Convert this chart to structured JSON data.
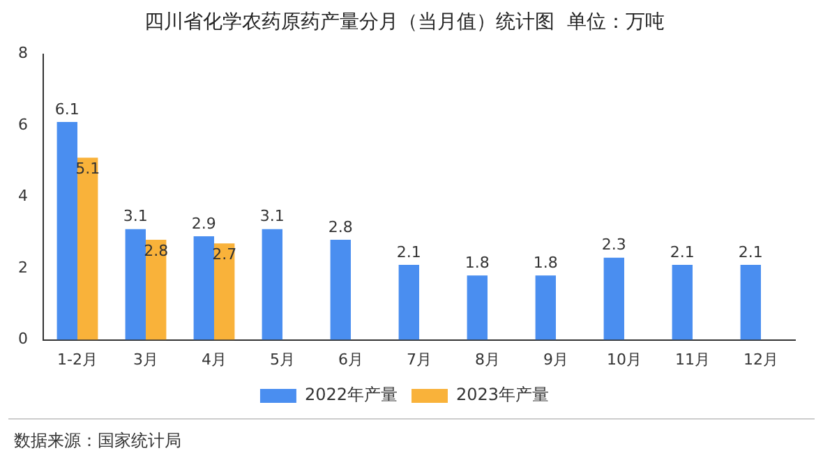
{
  "chart_data": {
    "type": "bar",
    "title": "四川省化学农药原药产量分月（当月值）统计图  单位：万吨",
    "categories": [
      "1-2月",
      "3月",
      "4月",
      "5月",
      "6月",
      "7月",
      "8月",
      "9月",
      "10月",
      "11月",
      "12月"
    ],
    "series": [
      {
        "name": "2022年产量",
        "color": "#4a8ef0",
        "values": [
          6.1,
          3.1,
          2.9,
          3.1,
          2.8,
          2.1,
          1.8,
          1.8,
          2.3,
          2.1,
          2.1
        ]
      },
      {
        "name": "2023年产量",
        "color": "#f9b23a",
        "values": [
          5.1,
          2.8,
          2.7,
          null,
          null,
          null,
          null,
          null,
          null,
          null,
          null
        ]
      }
    ],
    "ylim": [
      0,
      8
    ],
    "yticks": [
      0,
      2,
      4,
      6,
      8
    ],
    "grid": false,
    "legend": "bottom",
    "data_labels": true,
    "annotations": [
      "数据来源：国家统计局"
    ]
  }
}
